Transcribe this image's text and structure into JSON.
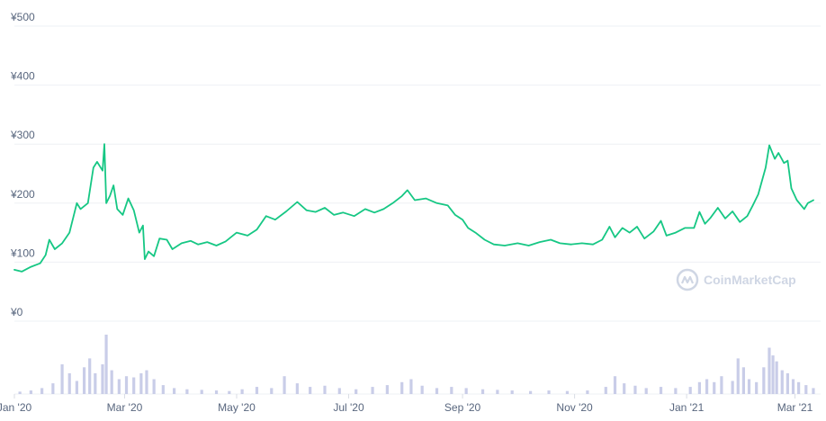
{
  "chart_data": {
    "type": "line",
    "currency": "¥",
    "ylim": [
      0,
      500
    ],
    "y_ticks": [
      {
        "value": 500,
        "label": "¥500"
      },
      {
        "value": 400,
        "label": "¥400"
      },
      {
        "value": 300,
        "label": "¥300"
      },
      {
        "value": 200,
        "label": "¥200"
      },
      {
        "value": 100,
        "label": "¥100"
      },
      {
        "value": 0,
        "label": "¥0"
      }
    ],
    "x_range": [
      "2020-01-01",
      "2021-03-12"
    ],
    "x_ticks": [
      {
        "date": "2020-01-01",
        "label": "Jan '20"
      },
      {
        "date": "2020-03-01",
        "label": "Mar '20"
      },
      {
        "date": "2020-05-01",
        "label": "May '20"
      },
      {
        "date": "2020-07-01",
        "label": "Jul '20"
      },
      {
        "date": "2020-09-01",
        "label": "Sep '20"
      },
      {
        "date": "2020-11-01",
        "label": "Nov '20"
      },
      {
        "date": "2021-01-01",
        "label": "Jan '21"
      },
      {
        "date": "2021-03-01",
        "label": "Mar '21"
      }
    ],
    "series": [
      {
        "color": "#16c784",
        "points": [
          [
            "2020-01-01",
            87
          ],
          [
            "2020-01-05",
            84
          ],
          [
            "2020-01-10",
            92
          ],
          [
            "2020-01-15",
            98
          ],
          [
            "2020-01-18",
            112
          ],
          [
            "2020-01-20",
            138
          ],
          [
            "2020-01-23",
            122
          ],
          [
            "2020-01-27",
            132
          ],
          [
            "2020-01-31",
            150
          ],
          [
            "2020-02-04",
            200
          ],
          [
            "2020-02-06",
            190
          ],
          [
            "2020-02-10",
            200
          ],
          [
            "2020-02-13",
            260
          ],
          [
            "2020-02-15",
            270
          ],
          [
            "2020-02-18",
            255
          ],
          [
            "2020-02-19",
            300
          ],
          [
            "2020-02-20",
            200
          ],
          [
            "2020-02-22",
            212
          ],
          [
            "2020-02-24",
            230
          ],
          [
            "2020-02-26",
            190
          ],
          [
            "2020-02-29",
            180
          ],
          [
            "2020-03-03",
            208
          ],
          [
            "2020-03-06",
            188
          ],
          [
            "2020-03-09",
            150
          ],
          [
            "2020-03-11",
            162
          ],
          [
            "2020-03-12",
            105
          ],
          [
            "2020-03-14",
            118
          ],
          [
            "2020-03-17",
            110
          ],
          [
            "2020-03-20",
            140
          ],
          [
            "2020-03-24",
            138
          ],
          [
            "2020-03-27",
            122
          ],
          [
            "2020-04-01",
            132
          ],
          [
            "2020-04-06",
            136
          ],
          [
            "2020-04-10",
            130
          ],
          [
            "2020-04-15",
            134
          ],
          [
            "2020-04-20",
            128
          ],
          [
            "2020-04-25",
            135
          ],
          [
            "2020-05-01",
            150
          ],
          [
            "2020-05-07",
            145
          ],
          [
            "2020-05-12",
            155
          ],
          [
            "2020-05-17",
            178
          ],
          [
            "2020-05-22",
            172
          ],
          [
            "2020-05-28",
            186
          ],
          [
            "2020-06-03",
            202
          ],
          [
            "2020-06-08",
            188
          ],
          [
            "2020-06-13",
            185
          ],
          [
            "2020-06-18",
            192
          ],
          [
            "2020-06-23",
            180
          ],
          [
            "2020-06-28",
            184
          ],
          [
            "2020-07-04",
            178
          ],
          [
            "2020-07-10",
            190
          ],
          [
            "2020-07-15",
            184
          ],
          [
            "2020-07-20",
            190
          ],
          [
            "2020-07-25",
            200
          ],
          [
            "2020-07-30",
            212
          ],
          [
            "2020-08-02",
            222
          ],
          [
            "2020-08-06",
            205
          ],
          [
            "2020-08-12",
            208
          ],
          [
            "2020-08-18",
            200
          ],
          [
            "2020-08-24",
            196
          ],
          [
            "2020-08-28",
            180
          ],
          [
            "2020-09-01",
            172
          ],
          [
            "2020-09-04",
            158
          ],
          [
            "2020-09-08",
            150
          ],
          [
            "2020-09-13",
            138
          ],
          [
            "2020-09-18",
            130
          ],
          [
            "2020-09-24",
            128
          ],
          [
            "2020-10-01",
            132
          ],
          [
            "2020-10-07",
            128
          ],
          [
            "2020-10-13",
            134
          ],
          [
            "2020-10-19",
            138
          ],
          [
            "2020-10-24",
            132
          ],
          [
            "2020-10-30",
            130
          ],
          [
            "2020-11-05",
            132
          ],
          [
            "2020-11-11",
            130
          ],
          [
            "2020-11-16",
            138
          ],
          [
            "2020-11-20",
            160
          ],
          [
            "2020-11-23",
            142
          ],
          [
            "2020-11-27",
            158
          ],
          [
            "2020-12-01",
            150
          ],
          [
            "2020-12-05",
            160
          ],
          [
            "2020-12-09",
            140
          ],
          [
            "2020-12-14",
            152
          ],
          [
            "2020-12-18",
            170
          ],
          [
            "2020-12-21",
            145
          ],
          [
            "2020-12-26",
            150
          ],
          [
            "2020-12-31",
            158
          ],
          [
            "2021-01-05",
            158
          ],
          [
            "2021-01-08",
            185
          ],
          [
            "2021-01-11",
            165
          ],
          [
            "2021-01-14",
            175
          ],
          [
            "2021-01-18",
            192
          ],
          [
            "2021-01-22",
            174
          ],
          [
            "2021-01-26",
            186
          ],
          [
            "2021-01-30",
            168
          ],
          [
            "2021-02-03",
            178
          ],
          [
            "2021-02-06",
            196
          ],
          [
            "2021-02-09",
            215
          ],
          [
            "2021-02-13",
            260
          ],
          [
            "2021-02-15",
            298
          ],
          [
            "2021-02-18",
            275
          ],
          [
            "2021-02-20",
            285
          ],
          [
            "2021-02-23",
            268
          ],
          [
            "2021-02-25",
            272
          ],
          [
            "2021-02-27",
            225
          ],
          [
            "2021-03-02",
            205
          ],
          [
            "2021-03-06",
            190
          ],
          [
            "2021-03-08",
            200
          ],
          [
            "2021-03-11",
            205
          ]
        ]
      }
    ],
    "volume": {
      "color": "#c9cde8",
      "bars": [
        [
          "2020-01-04",
          0.04
        ],
        [
          "2020-01-10",
          0.06
        ],
        [
          "2020-01-16",
          0.1
        ],
        [
          "2020-01-22",
          0.18
        ],
        [
          "2020-01-27",
          0.5
        ],
        [
          "2020-01-31",
          0.35
        ],
        [
          "2020-02-04",
          0.22
        ],
        [
          "2020-02-08",
          0.45
        ],
        [
          "2020-02-11",
          0.6
        ],
        [
          "2020-02-14",
          0.35
        ],
        [
          "2020-02-18",
          0.5
        ],
        [
          "2020-02-20",
          1.0
        ],
        [
          "2020-02-23",
          0.4
        ],
        [
          "2020-02-27",
          0.25
        ],
        [
          "2020-03-02",
          0.3
        ],
        [
          "2020-03-06",
          0.28
        ],
        [
          "2020-03-10",
          0.35
        ],
        [
          "2020-03-13",
          0.4
        ],
        [
          "2020-03-17",
          0.25
        ],
        [
          "2020-03-22",
          0.15
        ],
        [
          "2020-03-28",
          0.1
        ],
        [
          "2020-04-04",
          0.08
        ],
        [
          "2020-04-12",
          0.07
        ],
        [
          "2020-04-20",
          0.06
        ],
        [
          "2020-04-27",
          0.05
        ],
        [
          "2020-05-04",
          0.08
        ],
        [
          "2020-05-12",
          0.12
        ],
        [
          "2020-05-20",
          0.1
        ],
        [
          "2020-05-27",
          0.3
        ],
        [
          "2020-06-03",
          0.18
        ],
        [
          "2020-06-10",
          0.12
        ],
        [
          "2020-06-18",
          0.14
        ],
        [
          "2020-06-26",
          0.1
        ],
        [
          "2020-07-05",
          0.08
        ],
        [
          "2020-07-14",
          0.12
        ],
        [
          "2020-07-22",
          0.15
        ],
        [
          "2020-07-30",
          0.2
        ],
        [
          "2020-08-04",
          0.25
        ],
        [
          "2020-08-10",
          0.14
        ],
        [
          "2020-08-18",
          0.1
        ],
        [
          "2020-08-26",
          0.12
        ],
        [
          "2020-09-03",
          0.1
        ],
        [
          "2020-09-12",
          0.08
        ],
        [
          "2020-09-20",
          0.07
        ],
        [
          "2020-09-28",
          0.06
        ],
        [
          "2020-10-08",
          0.05
        ],
        [
          "2020-10-18",
          0.06
        ],
        [
          "2020-10-28",
          0.05
        ],
        [
          "2020-11-08",
          0.06
        ],
        [
          "2020-11-18",
          0.12
        ],
        [
          "2020-11-23",
          0.3
        ],
        [
          "2020-11-28",
          0.18
        ],
        [
          "2020-12-04",
          0.14
        ],
        [
          "2020-12-10",
          0.1
        ],
        [
          "2020-12-18",
          0.12
        ],
        [
          "2020-12-26",
          0.1
        ],
        [
          "2021-01-03",
          0.12
        ],
        [
          "2021-01-08",
          0.2
        ],
        [
          "2021-01-12",
          0.25
        ],
        [
          "2021-01-16",
          0.2
        ],
        [
          "2021-01-20",
          0.3
        ],
        [
          "2021-01-26",
          0.22
        ],
        [
          "2021-01-29",
          0.6
        ],
        [
          "2021-02-01",
          0.45
        ],
        [
          "2021-02-04",
          0.25
        ],
        [
          "2021-02-08",
          0.2
        ],
        [
          "2021-02-12",
          0.45
        ],
        [
          "2021-02-15",
          0.78
        ],
        [
          "2021-02-17",
          0.65
        ],
        [
          "2021-02-19",
          0.55
        ],
        [
          "2021-02-22",
          0.4
        ],
        [
          "2021-02-25",
          0.35
        ],
        [
          "2021-02-28",
          0.25
        ],
        [
          "2021-03-03",
          0.2
        ],
        [
          "2021-03-07",
          0.15
        ],
        [
          "2021-03-11",
          0.1
        ]
      ]
    }
  },
  "watermark": {
    "text": "CoinMarketCap",
    "icon": "coinmarketcap-logo-icon"
  }
}
